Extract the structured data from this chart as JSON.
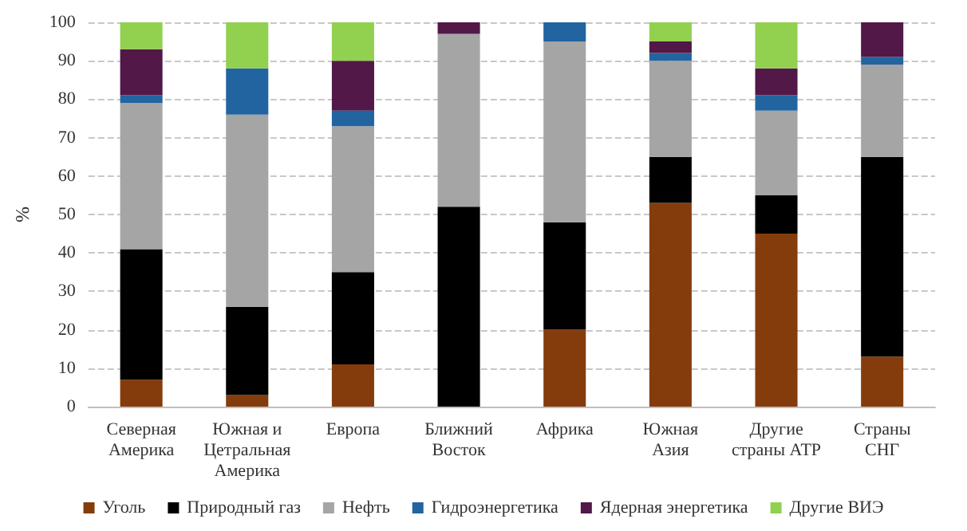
{
  "chart_data": {
    "type": "bar",
    "stacked": true,
    "ylabel": "%",
    "categories": [
      "Северная Америка",
      "Южная и Цетральная Америка",
      "Европа",
      "Ближний Восток",
      "Африка",
      "Южная Азия",
      "Другие страны АТР",
      "Страны СНГ"
    ],
    "series": [
      {
        "name": "Уголь",
        "color": "#843c0c",
        "values": [
          7,
          3,
          11,
          0,
          20,
          53,
          45,
          13
        ]
      },
      {
        "name": "Природный газ",
        "color": "#000000",
        "values": [
          34,
          23,
          24,
          52,
          28,
          12,
          10,
          52
        ]
      },
      {
        "name": "Нефть",
        "color": "#a5a5a5",
        "values": [
          38,
          50,
          38,
          45,
          47,
          25,
          22,
          24
        ]
      },
      {
        "name": "Гидроэнергетика",
        "color": "#2264a0",
        "values": [
          2,
          12,
          4,
          0,
          5,
          2,
          4,
          2
        ]
      },
      {
        "name": "Ядерная энергетика",
        "color": "#511848",
        "values": [
          12,
          0,
          13,
          3,
          0,
          3,
          7,
          9
        ]
      },
      {
        "name": "Другие ВИЭ",
        "color": "#92d050",
        "values": [
          7,
          12,
          10,
          0,
          0,
          5,
          12,
          0
        ]
      }
    ],
    "ylim": [
      0,
      100
    ],
    "yticks": [
      0,
      10,
      20,
      30,
      40,
      50,
      60,
      70,
      80,
      90,
      100
    ],
    "grid": "y",
    "legend": "bottom"
  }
}
